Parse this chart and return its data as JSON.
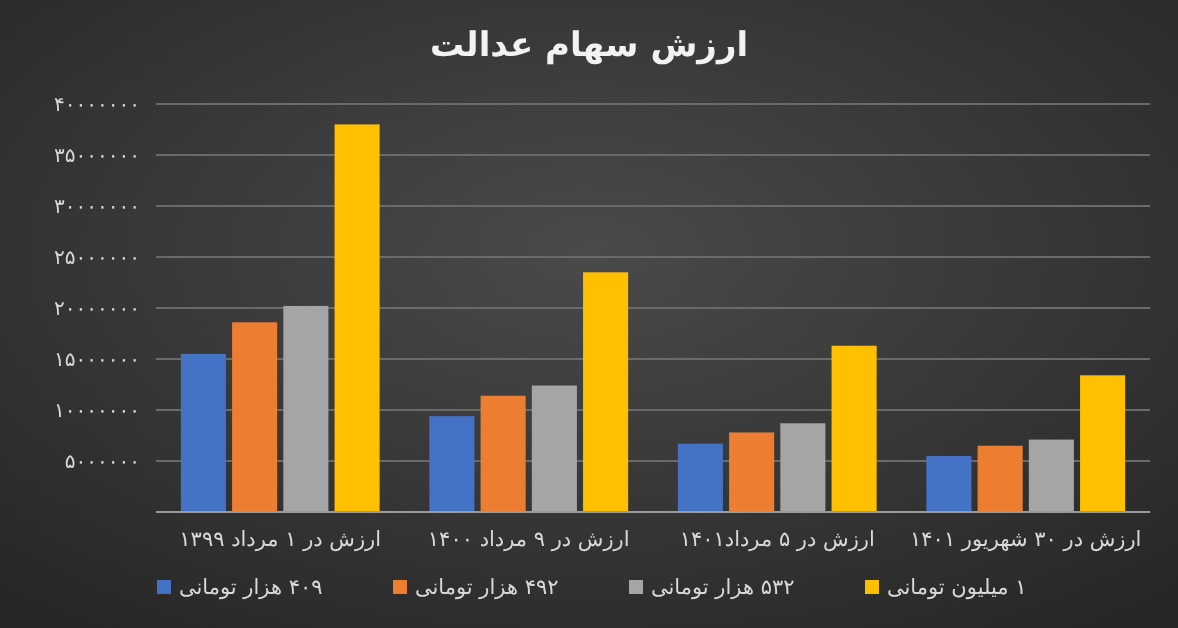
{
  "chart_data": {
    "type": "bar",
    "title": "ارزش سهام عدالت",
    "categories": [
      "ارزش در ۱ مرداد ۱۳۹۹",
      "ارزش در ۹ مرداد ۱۴۰۰",
      "ارزش در ۵ مرداد۱۴۰۱",
      "ارزش در ۳۰ شهریور ۱۴۰۱"
    ],
    "series": [
      {
        "name": "۴۰۹ هزار تومانی",
        "color": "#4472c4",
        "values": [
          15500000,
          9400000,
          6700000,
          5500000
        ]
      },
      {
        "name": "۴۹۲ هزار تومانی",
        "color": "#ed7d31",
        "values": [
          18600000,
          11400000,
          7800000,
          6500000
        ]
      },
      {
        "name": "۵۳۲ هزار تومانی",
        "color": "#a5a5a5",
        "values": [
          20200000,
          12400000,
          8700000,
          7100000
        ]
      },
      {
        "name": "۱ میلیون تومانی",
        "color": "#ffc000",
        "values": [
          38000000,
          23500000,
          16300000,
          13400000
        ]
      }
    ],
    "ylim": [
      0,
      40000000
    ],
    "yticks": [
      {
        "value": 0,
        "label": null
      },
      {
        "value": 5000000,
        "label": "۵۰۰۰۰۰۰"
      },
      {
        "value": 10000000,
        "label": "۱۰۰۰۰۰۰۰"
      },
      {
        "value": 15000000,
        "label": "۱۵۰۰۰۰۰۰"
      },
      {
        "value": 20000000,
        "label": "۲۰۰۰۰۰۰۰"
      },
      {
        "value": 25000000,
        "label": "۲۵۰۰۰۰۰۰"
      },
      {
        "value": 30000000,
        "label": "۳۰۰۰۰۰۰۰"
      },
      {
        "value": 35000000,
        "label": "۳۵۰۰۰۰۰۰"
      },
      {
        "value": 40000000,
        "label": "۴۰۰۰۰۰۰۰"
      }
    ],
    "grid": "y",
    "legend": "bottom"
  }
}
